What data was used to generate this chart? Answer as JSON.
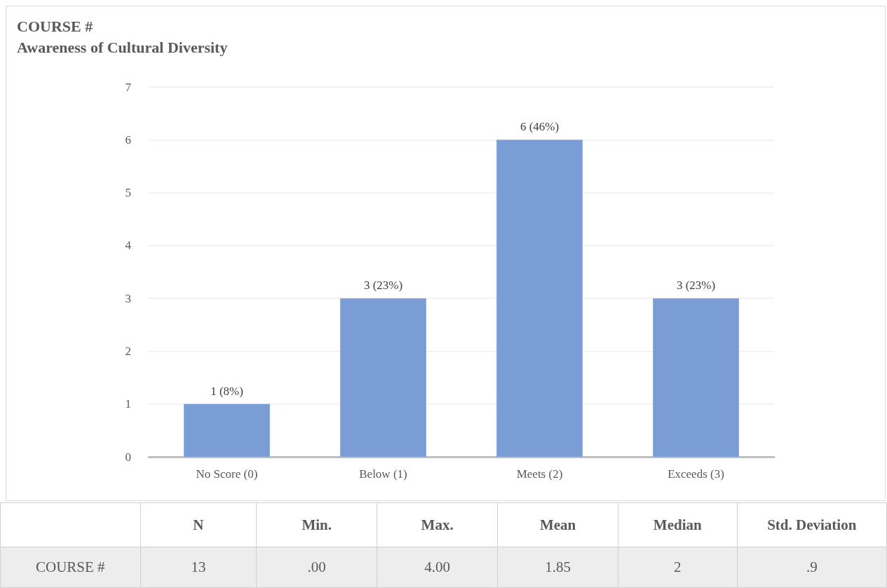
{
  "chart_data": [
    {
      "type": "bar",
      "title": "COURSE #",
      "subtitle": "Awareness of Cultural Diversity",
      "categories": [
        "No Score (0)",
        "Below (1)",
        "Meets (2)",
        "Exceeds (3)"
      ],
      "values": [
        1,
        3,
        6,
        3
      ],
      "value_labels": [
        "1 (8%)",
        "3 (23%)",
        "6 (46%)",
        "3 (23%)"
      ],
      "color": "#7b9dd5",
      "ylim": [
        0,
        7
      ],
      "yticks": [
        0,
        1,
        2,
        3,
        4,
        5,
        6,
        7
      ],
      "grid": "y"
    },
    {
      "type": "other",
      "categories": [
        "N",
        "Min.",
        "Max.",
        "Mean",
        "Median",
        "Std. Deviation"
      ],
      "y_categories": [
        "COURSE #"
      ],
      "cell_labels": [
        [
          "13",
          ".00",
          "4.00",
          "1.85",
          "2",
          ".9"
        ]
      ]
    }
  ]
}
